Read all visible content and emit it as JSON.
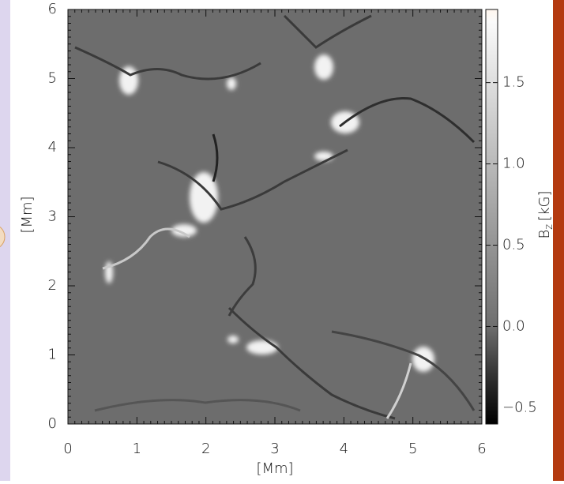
{
  "chart_data": {
    "type": "image",
    "xlabel": "[Mm]",
    "ylabel": "[Mm]",
    "xlim": [
      0,
      6
    ],
    "ylim": [
      0,
      6
    ],
    "xticks": [
      0,
      1,
      2,
      3,
      4,
      5,
      6
    ],
    "yticks": [
      0,
      1,
      2,
      3,
      4,
      5,
      6
    ],
    "colorbar": {
      "label": [
        "B",
        "z",
        "[kG]"
      ],
      "clim": [
        -0.6,
        1.95
      ],
      "ticks": [
        {
          "value": -0.5,
          "label": "−0.5"
        },
        {
          "value": 0,
          "label": "0.0"
        },
        {
          "value": 0.5,
          "label": "0.5"
        },
        {
          "value": 1,
          "label": "1.0"
        },
        {
          "value": 1.5,
          "label": "1.5"
        }
      ]
    }
  }
}
